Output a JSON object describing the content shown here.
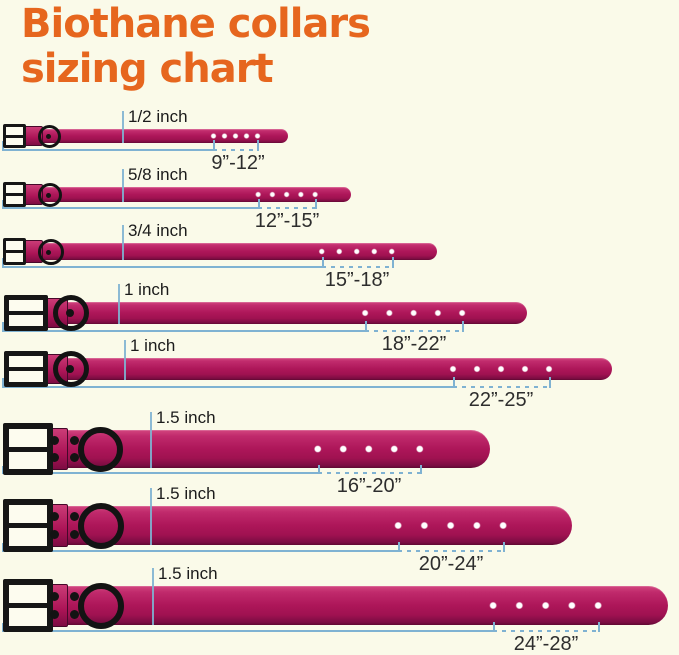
{
  "title": {
    "line1": "Biothane collars",
    "line2": "sizing chart"
  },
  "colors": {
    "bg": "#FAFAE9",
    "orange": "#E6661E",
    "magenta": "#AD1659",
    "blue": "#7FB2D2"
  },
  "rows": [
    {
      "width_label": "1/2 inch",
      "size_range": "9”-12”"
    },
    {
      "width_label": "5/8 inch",
      "size_range": "12”-15”"
    },
    {
      "width_label": "3/4 inch",
      "size_range": "15”-18”"
    },
    {
      "width_label": "1 inch",
      "size_range": "18”-22”"
    },
    {
      "width_label": "1 inch",
      "size_range": "22”-25”"
    },
    {
      "width_label": "1.5 inch",
      "size_range": "16”-20”"
    },
    {
      "width_label": "1.5 inch",
      "size_range": "20”-24”"
    },
    {
      "width_label": "1.5 inch",
      "size_range": "24”-28”"
    }
  ]
}
